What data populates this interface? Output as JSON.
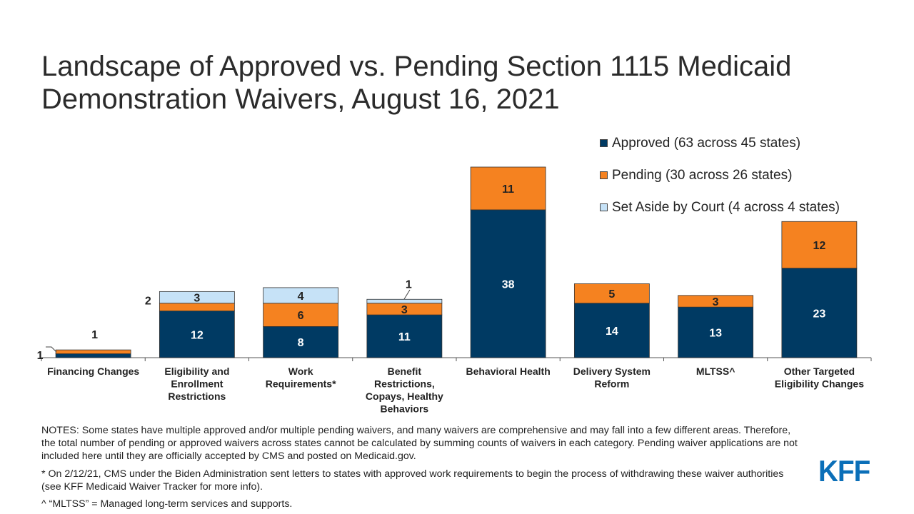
{
  "title": "Landscape of Approved vs. Pending Section 1115 Medicaid Demonstration Waivers, August 16, 2021",
  "legend": [
    {
      "label": "Approved (63 across 45 states)",
      "color": "#003a63"
    },
    {
      "label": "Pending (30 across 26 states)",
      "color": "#f58220"
    },
    {
      "label": "Set Aside by Court (4 across 4 states)",
      "color": "#c6e2f7"
    }
  ],
  "notes": {
    "main": "NOTES: Some states have multiple approved and/or multiple pending waivers, and many waivers are comprehensive and may fall into a few different areas. Therefore, the total number of pending or approved waivers across states cannot be calculated by summing counts of waivers in each category. Pending waiver applications are not included here until they are officially accepted by CMS and posted on Medicaid.gov.",
    "star": "* On 2/12/21, CMS under the Biden Administration sent letters to states with approved work requirements to begin the process of withdrawing these waiver authorities (see KFF Medicaid Waiver Tracker for more info).",
    "caret": "^ “MLTSS” = Managed long-term services and supports."
  },
  "logo_text": "KFF",
  "chart_data": {
    "type": "bar",
    "stacked": true,
    "categories": [
      [
        "Financing Changes"
      ],
      [
        "Eligibility and",
        "Enrollment",
        "Restrictions"
      ],
      [
        "Work",
        "Requirements*"
      ],
      [
        "Benefit",
        "Restrictions,",
        "Copays, Healthy",
        "Behaviors"
      ],
      [
        "Behavioral Health"
      ],
      [
        "Delivery System",
        "Reform"
      ],
      [
        "MLTSS^"
      ],
      [
        "Other Targeted",
        "Eligibility Changes"
      ]
    ],
    "series": [
      {
        "name": "Approved (63 across 45 states)",
        "color": "#003a63",
        "values": [
          1,
          12,
          8,
          11,
          38,
          14,
          13,
          23
        ]
      },
      {
        "name": "Pending (30 across 26 states)",
        "color": "#f58220",
        "values": [
          1,
          2,
          6,
          3,
          11,
          5,
          3,
          12
        ]
      },
      {
        "name": "Set Aside by Court (4 across 4 states)",
        "color": "#c6e2f7",
        "values": [
          0,
          3,
          4,
          1,
          0,
          0,
          0,
          0
        ]
      }
    ],
    "ylim": [
      0,
      51
    ],
    "grid": false,
    "legend_position": "top-right"
  }
}
